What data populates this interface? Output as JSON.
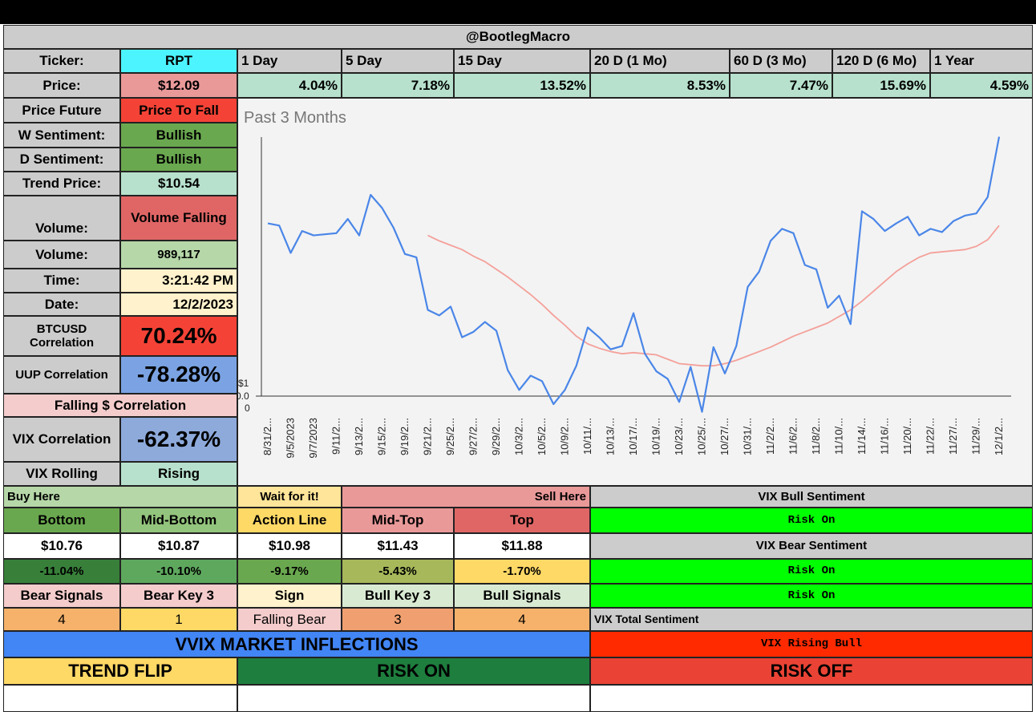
{
  "title": "@BootlegMacro",
  "ticker_row": {
    "label": "Ticker:",
    "value": "RPT",
    "periods": [
      "1 Day",
      "5 Day",
      "15 Day",
      "20 D (1 Mo)",
      "60 D (3 Mo)",
      "120 D (6 Mo)",
      "1 Year"
    ]
  },
  "price_row": {
    "label": "Price:",
    "value": "$12.09",
    "changes": [
      "4.04%",
      "7.18%",
      "13.52%",
      "8.53%",
      "7.47%",
      "15.69%",
      "4.59%"
    ]
  },
  "stats": [
    [
      "Price Future",
      "Price To Fall"
    ],
    [
      "W Sentiment:",
      "Bullish"
    ],
    [
      "D Sentiment:",
      "Bullish"
    ],
    [
      "Trend Price:",
      "$10.54"
    ],
    [
      "Volume:",
      "Volume Falling"
    ],
    [
      "Volume:",
      "989,117"
    ],
    [
      "Time:",
      "3:21:42 PM"
    ],
    [
      "Date:",
      "12/2/2023"
    ],
    [
      "BTCUSD Correlation",
      "70.24%"
    ],
    [
      "UUP Correlation",
      "-78.28%"
    ]
  ],
  "falling_correlation": "Falling $ Correlation",
  "stats2": [
    [
      "VIX Correlation",
      "-62.37%"
    ],
    [
      "VIX Rolling",
      "Rising"
    ]
  ],
  "levels": {
    "zones": [
      "Buy Here",
      "Wait for it!",
      "Sell Here"
    ],
    "headers": [
      "Bottom",
      "Mid-Bottom",
      "Action Line",
      "Mid-Top",
      "Top"
    ],
    "prices": [
      "$10.76",
      "$10.87",
      "$10.98",
      "$11.43",
      "$11.88"
    ],
    "changes": [
      "-11.04%",
      "-10.10%",
      "-9.17%",
      "-5.43%",
      "-1.70%"
    ]
  },
  "signals": {
    "headers": [
      "Bear Signals",
      "Bear Key 3",
      "Sign",
      "Bull Key 3",
      "Bull Signals"
    ],
    "values": [
      "4",
      "1",
      "Falling Bear",
      "3",
      "4"
    ]
  },
  "vix": {
    "bull_title": "VIX Bull Sentiment",
    "bull": "Risk On",
    "bear_title": "VIX Bear Sentiment",
    "bear": [
      "Risk On",
      "Risk On"
    ],
    "total_title": "VIX Total Sentiment",
    "total": "VIX Rising Bull"
  },
  "vvix": {
    "title": "VVIX MARKET INFLECTIONS",
    "items": [
      "TREND FLIP",
      "RISK ON",
      "RISK OFF"
    ]
  },
  "chart_data": {
    "type": "line",
    "title": "Past 3 Months",
    "y_axis_labels": [
      "$1",
      "0.0",
      "0"
    ],
    "categories": [
      "8/31/2...",
      null,
      "9/5/2023",
      null,
      "9/7/2023",
      null,
      "9/11/2...",
      null,
      "9/13/2...",
      null,
      "9/15/2...",
      null,
      "9/19/2...",
      null,
      "9/21/2...",
      null,
      "9/25/2...",
      null,
      "9/27/2...",
      null,
      "9/29/2...",
      null,
      "10/3/2...",
      null,
      "10/5/2...",
      null,
      "10/9/2...",
      null,
      "10/11/...",
      null,
      "10/13/...",
      null,
      "10/17/...",
      null,
      "10/19/...",
      null,
      "10/23/...",
      null,
      "10/25/...",
      null,
      "10/27/...",
      null,
      "10/31/...",
      null,
      "11/2/2...",
      null,
      "11/6/2...",
      null,
      "11/8/2...",
      null,
      "11/10/...",
      null,
      "11/14/...",
      null,
      "11/16/...",
      null,
      "11/20/...",
      null,
      "11/22/...",
      null,
      "11/27/...",
      null,
      "11/29/...",
      null,
      "12/1/2..."
    ],
    "series": [
      {
        "color": "#4a86e8",
        "values": [
          11.34,
          11.32,
          11.07,
          11.27,
          11.23,
          11.24,
          11.25,
          11.38,
          11.23,
          11.6,
          11.48,
          11.3,
          11.06,
          11.03,
          10.55,
          10.5,
          10.58,
          10.3,
          10.35,
          10.44,
          10.36,
          10.0,
          9.82,
          9.95,
          9.9,
          9.69,
          9.82,
          10.04,
          10.39,
          10.3,
          10.19,
          10.22,
          10.52,
          10.15,
          9.99,
          9.92,
          9.71,
          10.03,
          9.62,
          10.21,
          9.97,
          10.22,
          10.76,
          10.9,
          11.18,
          11.29,
          11.25,
          10.96,
          10.92,
          10.57,
          10.68,
          10.42,
          11.45,
          11.38,
          11.27,
          11.34,
          11.4,
          11.23,
          11.29,
          11.26,
          11.36,
          11.41,
          11.43,
          11.58,
          12.13
        ]
      },
      {
        "color": "#f4a09a",
        "values": [
          null,
          null,
          null,
          null,
          null,
          null,
          null,
          null,
          null,
          null,
          null,
          null,
          null,
          null,
          11.23,
          11.18,
          11.14,
          11.1,
          11.04,
          10.99,
          10.92,
          10.85,
          10.77,
          10.69,
          10.6,
          10.5,
          10.41,
          10.31,
          10.24,
          10.2,
          10.17,
          10.15,
          10.16,
          10.15,
          10.14,
          10.1,
          10.06,
          10.05,
          10.04,
          10.04,
          10.06,
          10.09,
          10.13,
          10.17,
          10.21,
          10.26,
          10.31,
          10.35,
          10.39,
          10.43,
          10.49,
          10.55,
          10.63,
          10.72,
          10.81,
          10.9,
          10.97,
          11.03,
          11.07,
          11.08,
          11.09,
          11.1,
          11.13,
          11.19,
          11.32
        ]
      }
    ],
    "ylim": [
      9.5,
      12.2
    ]
  }
}
